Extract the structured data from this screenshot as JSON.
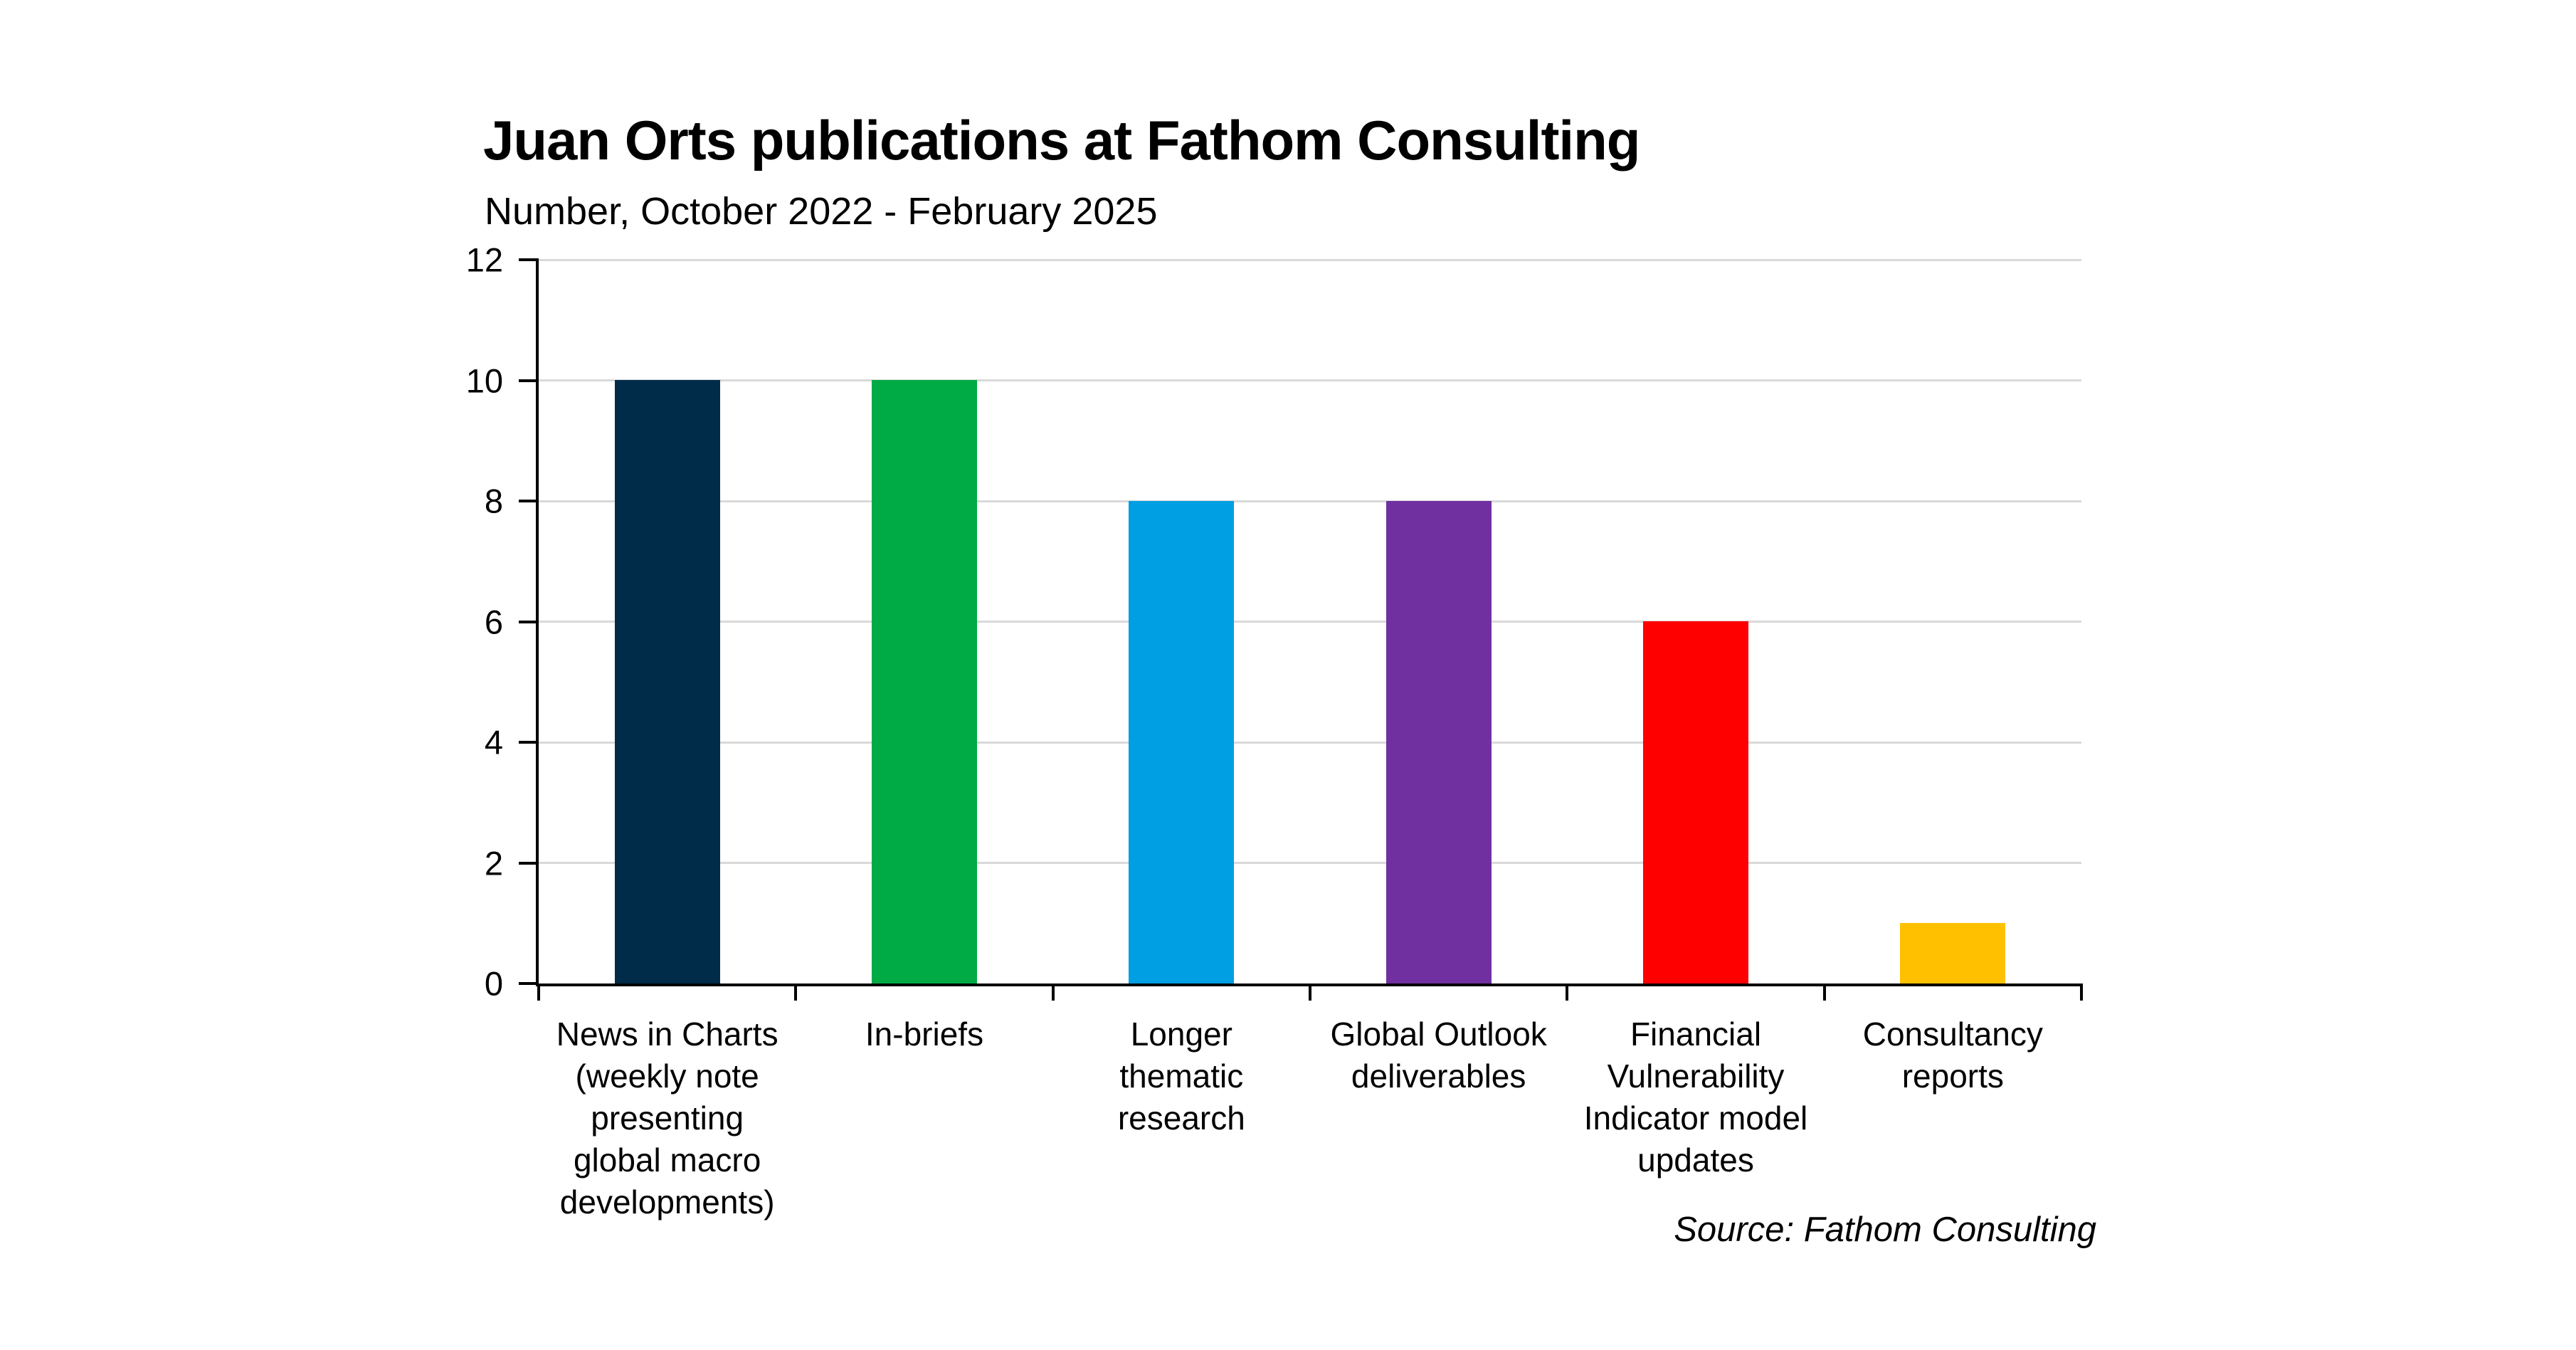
{
  "title": "Juan Orts publications at Fathom Consulting",
  "subtitle": "Number, October 2022 - February 2025",
  "source": "Source: Fathom Consulting",
  "chart_data": {
    "type": "bar",
    "title": "Juan Orts publications at Fathom Consulting",
    "subtitle": "Number, October 2022 - February 2025",
    "categories": [
      "News in Charts (weekly note presenting global macro developments)",
      "In-briefs",
      "Longer thematic research",
      "Global Outlook deliverables",
      "Financial Vulnerability Indicator model updates",
      "Consultancy reports"
    ],
    "category_labels_display": [
      "News in Charts\n(weekly note\npresenting\nglobal macro\ndevelopments)",
      "In-briefs",
      "Longer\nthematic\nresearch",
      "Global Outlook\ndeliverables",
      "Financial\nVulnerability\nIndicator model\nupdates",
      "Consultancy\nreports"
    ],
    "values": [
      10,
      10,
      8,
      8,
      6,
      1
    ],
    "bar_colors": [
      "#002b49",
      "#00ab45",
      "#009ee3",
      "#7030a0",
      "#ff0000",
      "#ffc000"
    ],
    "xlabel": "",
    "ylabel": "",
    "ylim": [
      0,
      12
    ],
    "yticks": [
      0,
      2,
      4,
      6,
      8,
      10,
      12
    ],
    "grid": "horizontal gridlines at each y tick",
    "gridline_color": "#d9d9d9",
    "axis_color": "#000000",
    "legend_position": "none",
    "source": "Source: Fathom Consulting"
  }
}
